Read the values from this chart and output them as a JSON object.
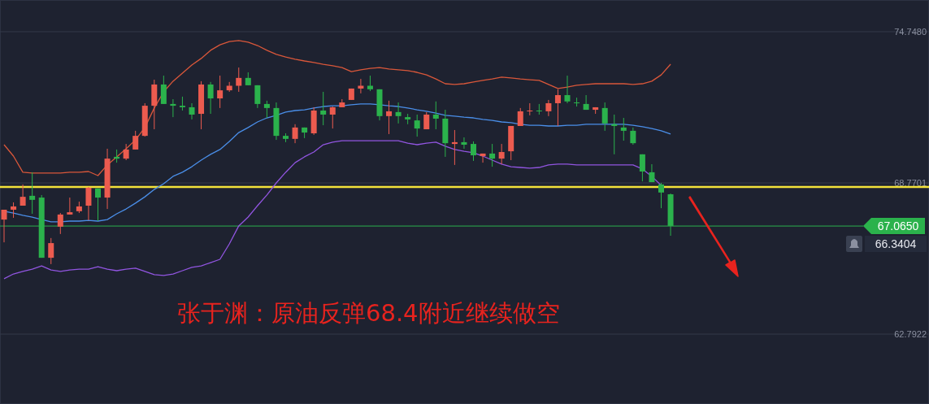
{
  "chart_data": {
    "type": "candlestick",
    "categories": [
      null,
      null,
      null,
      null,
      null,
      null,
      null,
      null,
      null,
      null,
      null,
      null,
      null,
      null,
      null,
      null,
      null,
      null,
      null,
      null,
      null,
      null,
      null,
      null,
      null,
      null,
      null,
      null,
      null,
      null,
      null,
      null,
      null,
      null,
      null,
      null,
      null,
      null,
      null,
      null,
      null,
      null,
      null,
      null,
      null,
      null,
      null,
      null,
      null,
      null,
      null,
      null,
      null,
      null,
      null,
      null,
      null,
      null,
      null,
      null,
      null,
      null,
      null,
      null,
      null,
      null,
      null,
      null,
      null,
      null,
      null,
      null
    ],
    "ohlc": [
      [
        67.32,
        67.71,
        66.42,
        67.71
      ],
      [
        67.71,
        68.0,
        67.39,
        67.84
      ],
      [
        67.87,
        68.71,
        67.87,
        68.22
      ],
      [
        68.26,
        69.19,
        67.55,
        68.1
      ],
      [
        68.19,
        68.29,
        65.81,
        65.81
      ],
      [
        65.81,
        66.59,
        65.56,
        66.39
      ],
      [
        67.04,
        67.58,
        66.75,
        67.52
      ],
      [
        67.52,
        68.19,
        67.52,
        67.61
      ],
      [
        67.65,
        68.03,
        67.58,
        67.84
      ],
      [
        67.87,
        68.61,
        67.29,
        68.58
      ],
      [
        68.55,
        68.55,
        67.26,
        68.19
      ],
      [
        68.19,
        70.12,
        67.74,
        69.73
      ],
      [
        69.8,
        70.09,
        69.57,
        69.73
      ],
      [
        69.73,
        70.31,
        69.67,
        70.09
      ],
      [
        70.09,
        70.83,
        70.09,
        70.63
      ],
      [
        70.63,
        71.92,
        70.6,
        71.82
      ],
      [
        71.82,
        72.85,
        70.89,
        72.66
      ],
      [
        72.66,
        73.01,
        71.89,
        71.89
      ],
      [
        71.89,
        72.08,
        71.37,
        71.82
      ],
      [
        71.82,
        72.18,
        71.63,
        71.76
      ],
      [
        71.76,
        71.92,
        71.28,
        71.47
      ],
      [
        71.5,
        72.79,
        70.89,
        72.66
      ],
      [
        72.66,
        72.76,
        71.5,
        72.11
      ],
      [
        72.11,
        73.01,
        71.73,
        72.43
      ],
      [
        72.43,
        72.76,
        72.37,
        72.61
      ],
      [
        72.61,
        73.33,
        72.37,
        72.92
      ],
      [
        72.92,
        73.14,
        72.63,
        72.63
      ],
      [
        72.63,
        72.63,
        71.73,
        71.89
      ],
      [
        71.89,
        72.02,
        71.34,
        71.73
      ],
      [
        71.73,
        71.95,
        70.47,
        70.63
      ],
      [
        70.63,
        70.73,
        70.38,
        70.51
      ],
      [
        70.51,
        71.09,
        70.34,
        70.96
      ],
      [
        70.96,
        70.96,
        70.54,
        70.76
      ],
      [
        70.73,
        71.76,
        70.67,
        71.63
      ],
      [
        71.63,
        72.37,
        71.05,
        71.47
      ],
      [
        71.47,
        71.79,
        70.92,
        71.76
      ],
      [
        71.76,
        72.08,
        71.76,
        71.95
      ],
      [
        72.05,
        72.5,
        72.05,
        72.5
      ],
      [
        72.5,
        72.88,
        72.31,
        72.61
      ],
      [
        72.61,
        73.01,
        72.4,
        72.47
      ],
      [
        72.47,
        72.47,
        71.24,
        71.41
      ],
      [
        71.41,
        72.02,
        70.7,
        71.6
      ],
      [
        71.57,
        71.95,
        71.12,
        71.41
      ],
      [
        71.37,
        71.5,
        71.09,
        71.28
      ],
      [
        71.24,
        71.47,
        70.6,
        70.92
      ],
      [
        70.89,
        71.57,
        70.89,
        71.47
      ],
      [
        71.47,
        71.99,
        70.89,
        71.31
      ],
      [
        71.31,
        71.66,
        69.8,
        70.34
      ],
      [
        70.31,
        70.86,
        69.48,
        70.38
      ],
      [
        70.38,
        70.57,
        70.12,
        70.28
      ],
      [
        70.31,
        70.41,
        69.64,
        69.86
      ],
      [
        69.83,
        69.93,
        69.57,
        69.93
      ],
      [
        69.93,
        70.31,
        69.41,
        69.73
      ],
      [
        69.73,
        70.31,
        69.51,
        69.99
      ],
      [
        70.02,
        71.02,
        69.67,
        71.02
      ],
      [
        71.02,
        71.73,
        71.02,
        71.6
      ],
      [
        71.6,
        71.92,
        71.44,
        71.63
      ],
      [
        71.63,
        71.89,
        71.47,
        71.6
      ],
      [
        71.6,
        72.05,
        71.41,
        71.92
      ],
      [
        71.92,
        72.47,
        71.02,
        72.24
      ],
      [
        72.24,
        73.01,
        71.92,
        71.99
      ],
      [
        71.95,
        72.14,
        71.79,
        71.92
      ],
      [
        71.89,
        72.24,
        71.66,
        71.66
      ],
      [
        71.66,
        71.76,
        71.5,
        71.76
      ],
      [
        71.73,
        71.95,
        70.83,
        71.12
      ],
      [
        71.09,
        71.47,
        69.9,
        71.02
      ],
      [
        70.96,
        71.34,
        70.44,
        70.83
      ],
      [
        70.83,
        70.96,
        70.28,
        70.34
      ],
      [
        69.9,
        69.9,
        68.83,
        69.22
      ],
      [
        69.19,
        69.51,
        68.8,
        68.8
      ],
      [
        68.71,
        68.77,
        67.77,
        68.39
      ],
      [
        68.32,
        68.35,
        66.68,
        67.07
      ]
    ],
    "colors": [
      "#ec5b4f",
      "#ec5b4f",
      "#ec5b4f",
      "#2bb24c",
      "#2bb24c",
      "#ec5b4f",
      "#ec5b4f",
      "#ec5b4f",
      "#ec5b4f",
      "#ec5b4f",
      "#2bb24c",
      "#ec5b4f",
      "#2bb24c",
      "#ec5b4f",
      "#ec5b4f",
      "#ec5b4f",
      "#ec5b4f",
      "#2bb24c",
      "#2bb24c",
      "#2bb24c",
      "#2bb24c",
      "#ec5b4f",
      "#2bb24c",
      "#ec5b4f",
      "#ec5b4f",
      "#ec5b4f",
      "#2bb24c",
      "#2bb24c",
      "#2bb24c",
      "#2bb24c",
      "#2bb24c",
      "#ec5b4f",
      "#2bb24c",
      "#ec5b4f",
      "#2bb24c",
      "#ec5b4f",
      "#ec5b4f",
      "#ec5b4f",
      "#ec5b4f",
      "#2bb24c",
      "#2bb24c",
      "#ec5b4f",
      "#2bb24c",
      "#2bb24c",
      "#2bb24c",
      "#ec5b4f",
      "#2bb24c",
      "#2bb24c",
      "#ec5b4f",
      "#2bb24c",
      "#2bb24c",
      "#ec5b4f",
      "#2bb24c",
      "#ec5b4f",
      "#ec5b4f",
      "#ec5b4f",
      "#ec5b4f",
      "#2bb24c",
      "#ec5b4f",
      "#ec5b4f",
      "#2bb24c",
      "#2bb24c",
      "#2bb24c",
      "#ec5b4f",
      "#2bb24c",
      "#2bb24c",
      "#2bb24c",
      "#2bb24c",
      "#2bb24c",
      "#2bb24c",
      "#2bb24c",
      "#2bb24c"
    ],
    "series": [
      {
        "type": "line",
        "color": "#d9573a",
        "values": [
          70.28,
          69.83,
          69.19,
          69.16,
          69.16,
          69.16,
          69.16,
          69.19,
          69.19,
          69.22,
          69.06,
          69.48,
          69.8,
          70.12,
          70.47,
          70.96,
          71.73,
          72.37,
          72.79,
          73.11,
          73.43,
          73.69,
          74.01,
          74.23,
          74.36,
          74.4,
          74.33,
          74.2,
          74.01,
          73.85,
          73.75,
          73.66,
          73.59,
          73.53,
          73.46,
          73.4,
          73.33,
          73.17,
          73.24,
          73.3,
          73.33,
          73.27,
          73.24,
          73.21,
          73.14,
          73.04,
          72.88,
          72.69,
          72.66,
          72.69,
          72.76,
          72.82,
          72.88,
          72.95,
          72.92,
          72.88,
          72.85,
          72.82,
          72.66,
          72.5,
          72.56,
          72.63,
          72.66,
          72.69,
          72.69,
          72.69,
          72.69,
          72.66,
          72.69,
          72.79,
          73.04,
          73.46
        ]
      },
      {
        "type": "line",
        "color": "#4a8ee8",
        "values": [
          67.65,
          67.58,
          67.49,
          67.42,
          67.32,
          67.23,
          67.23,
          67.26,
          67.26,
          67.29,
          67.26,
          67.32,
          67.55,
          67.74,
          67.97,
          68.22,
          68.51,
          68.74,
          69.03,
          69.19,
          69.41,
          69.67,
          69.9,
          70.09,
          70.41,
          70.76,
          70.96,
          71.18,
          71.34,
          71.44,
          71.57,
          71.63,
          71.66,
          71.73,
          71.79,
          71.82,
          71.82,
          71.86,
          71.89,
          71.89,
          71.86,
          71.82,
          71.79,
          71.73,
          71.66,
          71.6,
          71.53,
          71.44,
          71.41,
          71.37,
          71.34,
          71.28,
          71.24,
          71.18,
          71.15,
          71.09,
          71.05,
          71.05,
          71.02,
          71.02,
          71.05,
          71.05,
          71.09,
          71.09,
          71.09,
          71.09,
          71.09,
          71.05,
          70.99,
          70.92,
          70.83,
          70.7
        ]
      },
      {
        "type": "line",
        "color": "#9155e0",
        "values": [
          64.98,
          65.17,
          65.27,
          65.36,
          65.49,
          65.33,
          65.27,
          65.33,
          65.36,
          65.36,
          65.46,
          65.36,
          65.3,
          65.36,
          65.4,
          65.27,
          65.14,
          65.11,
          65.17,
          65.3,
          65.43,
          65.49,
          65.62,
          65.75,
          66.36,
          67.07,
          67.42,
          67.87,
          68.29,
          68.77,
          69.19,
          69.57,
          69.8,
          69.99,
          70.28,
          70.38,
          70.44,
          70.44,
          70.44,
          70.44,
          70.44,
          70.44,
          70.44,
          70.34,
          70.28,
          70.34,
          70.38,
          70.22,
          70.09,
          70.02,
          69.96,
          69.83,
          69.67,
          69.51,
          69.41,
          69.38,
          69.35,
          69.38,
          69.48,
          69.51,
          69.51,
          69.48,
          69.48,
          69.48,
          69.48,
          69.48,
          69.48,
          69.48,
          69.32,
          69.03,
          68.67,
          null
        ]
      }
    ],
    "ylim": [
      60.03,
      76.0
    ],
    "yticks": [
      {
        "value": 74.748,
        "label": "74.7480"
      },
      {
        "value": 68.7701,
        "label": "68.7701"
      },
      {
        "value": 62.7922,
        "label": "62.7922"
      }
    ],
    "grid": "y",
    "ref_lines": [
      {
        "axis": "y",
        "value": 68.61,
        "color": "#f3e23a"
      },
      {
        "axis": "y",
        "value": 67.065,
        "label": "67.0650",
        "color": "#2bb24c"
      }
    ],
    "annotations": [
      "张于渊：原油反弹68.4附近继续做空",
      "66.3404"
    ]
  }
}
